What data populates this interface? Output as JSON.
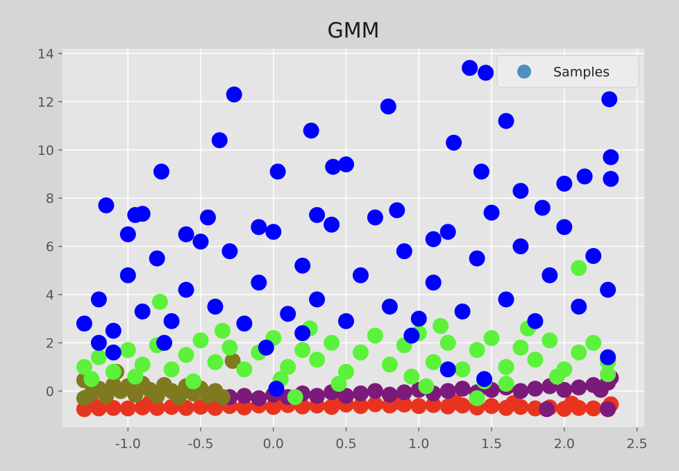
{
  "chart_data": {
    "type": "scatter",
    "title": "GMM",
    "xlabel": "",
    "ylabel": "",
    "xlim": [
      -1.45,
      2.55
    ],
    "ylim": [
      -1.5,
      14.2
    ],
    "xticks": [
      -1.0,
      -0.5,
      0.0,
      0.5,
      1.0,
      1.5,
      2.0,
      2.5
    ],
    "xtick_labels": [
      "-1.0",
      "-0.5",
      "0.0",
      "0.5",
      "1.0",
      "1.5",
      "2.0",
      "2.5"
    ],
    "yticks": [
      0,
      2,
      4,
      6,
      8,
      10,
      12,
      14
    ],
    "ytick_labels": [
      "0",
      "2",
      "4",
      "6",
      "8",
      "10",
      "12",
      "14"
    ],
    "grid": true,
    "legend": {
      "position": "top-right",
      "entries": [
        {
          "label": "Samples",
          "color": "#4c8fc0"
        }
      ]
    },
    "colors": {
      "blue_cluster": "#0000ff",
      "green_cluster": "#5cf23c",
      "olive_cluster": "#7f7a1f",
      "purple_cluster": "#7b1a7a",
      "red_cluster": "#e8341f"
    },
    "x_range_of_samples": [
      -1.33,
      2.35
    ],
    "series": [
      {
        "color": "#e8341f",
        "points": [
          [
            -1.3,
            -0.75
          ],
          [
            -1.2,
            -0.72
          ],
          [
            -1.1,
            -0.7
          ],
          [
            -1.0,
            -0.72
          ],
          [
            -0.9,
            -0.68
          ],
          [
            -0.8,
            -0.7
          ],
          [
            -0.7,
            -0.66
          ],
          [
            -0.6,
            -0.7
          ],
          [
            -0.5,
            -0.65
          ],
          [
            -0.4,
            -0.7
          ],
          [
            -0.3,
            -0.62
          ],
          [
            -0.2,
            -0.68
          ],
          [
            -0.1,
            -0.6
          ],
          [
            0.0,
            -0.66
          ],
          [
            0.1,
            -0.58
          ],
          [
            0.2,
            -0.64
          ],
          [
            0.3,
            -0.6
          ],
          [
            0.4,
            -0.66
          ],
          [
            0.5,
            -0.56
          ],
          [
            0.6,
            -0.62
          ],
          [
            0.7,
            -0.55
          ],
          [
            0.8,
            -0.6
          ],
          [
            0.9,
            -0.56
          ],
          [
            1.0,
            -0.62
          ],
          [
            1.1,
            -0.58
          ],
          [
            1.2,
            -0.64
          ],
          [
            1.3,
            -0.6
          ],
          [
            1.4,
            -0.68
          ],
          [
            1.5,
            -0.62
          ],
          [
            1.6,
            -0.7
          ],
          [
            1.7,
            -0.66
          ],
          [
            1.8,
            -0.72
          ],
          [
            1.9,
            -0.68
          ],
          [
            2.0,
            -0.74
          ],
          [
            2.1,
            -0.7
          ],
          [
            2.2,
            -0.72
          ],
          [
            2.3,
            -0.7
          ],
          [
            -1.25,
            -0.5
          ],
          [
            -0.85,
            -0.48
          ],
          [
            -0.45,
            -0.5
          ],
          [
            0.05,
            -0.45
          ],
          [
            0.45,
            -0.42
          ],
          [
            0.85,
            -0.44
          ],
          [
            1.25,
            -0.46
          ],
          [
            1.65,
            -0.5
          ],
          [
            2.05,
            -0.52
          ],
          [
            2.32,
            -0.55
          ]
        ]
      },
      {
        "color": "#7b1a7a",
        "points": [
          [
            -0.3,
            -0.25
          ],
          [
            -0.2,
            -0.2
          ],
          [
            -0.1,
            -0.3
          ],
          [
            0.0,
            -0.15
          ],
          [
            0.1,
            -0.25
          ],
          [
            0.2,
            -0.1
          ],
          [
            0.3,
            -0.2
          ],
          [
            0.4,
            -0.05
          ],
          [
            0.5,
            -0.2
          ],
          [
            0.6,
            -0.1
          ],
          [
            0.7,
            0.0
          ],
          [
            0.8,
            -0.15
          ],
          [
            0.9,
            -0.05
          ],
          [
            1.0,
            0.05
          ],
          [
            1.1,
            -0.1
          ],
          [
            1.2,
            0.0
          ],
          [
            1.3,
            0.1
          ],
          [
            1.4,
            -0.05
          ],
          [
            1.5,
            0.05
          ],
          [
            1.6,
            0.15
          ],
          [
            1.7,
            0.0
          ],
          [
            1.8,
            0.1
          ],
          [
            1.9,
            0.2
          ],
          [
            2.0,
            0.05
          ],
          [
            2.1,
            0.15
          ],
          [
            2.2,
            0.25
          ],
          [
            2.3,
            0.35
          ],
          [
            1.88,
            -0.75
          ],
          [
            2.3,
            -0.75
          ],
          [
            2.32,
            0.55
          ],
          [
            2.25,
            0.05
          ]
        ]
      },
      {
        "color": "#7f7a1f",
        "points": [
          [
            -1.3,
            -0.3
          ],
          [
            -1.25,
            -0.1
          ],
          [
            -1.2,
            0.1
          ],
          [
            -1.15,
            -0.2
          ],
          [
            -1.1,
            0.25
          ],
          [
            -1.05,
            0.0
          ],
          [
            -1.0,
            0.2
          ],
          [
            -0.95,
            -0.15
          ],
          [
            -0.9,
            0.3
          ],
          [
            -0.85,
            0.05
          ],
          [
            -0.8,
            -0.2
          ],
          [
            -0.75,
            0.25
          ],
          [
            -0.7,
            0.0
          ],
          [
            -0.65,
            -0.25
          ],
          [
            -0.6,
            0.2
          ],
          [
            -0.55,
            -0.1
          ],
          [
            -0.5,
            0.1
          ],
          [
            -0.45,
            -0.2
          ],
          [
            -0.4,
            0.0
          ],
          [
            -0.35,
            -0.25
          ],
          [
            -0.28,
            1.25
          ],
          [
            -1.08,
            0.8
          ],
          [
            -1.3,
            0.45
          ]
        ]
      },
      {
        "color": "#5cf23c",
        "points": [
          [
            -1.3,
            1.0
          ],
          [
            -1.2,
            1.4
          ],
          [
            -1.1,
            0.8
          ],
          [
            -1.0,
            1.7
          ],
          [
            -0.9,
            1.1
          ],
          [
            -0.8,
            1.9
          ],
          [
            -0.7,
            0.9
          ],
          [
            -0.6,
            1.5
          ],
          [
            -0.5,
            2.1
          ],
          [
            -0.4,
            1.2
          ],
          [
            -0.3,
            1.8
          ],
          [
            -0.2,
            0.9
          ],
          [
            -0.1,
            1.6
          ],
          [
            0.0,
            2.2
          ],
          [
            0.1,
            1.0
          ],
          [
            0.2,
            1.7
          ],
          [
            0.3,
            1.3
          ],
          [
            0.4,
            2.0
          ],
          [
            0.5,
            0.8
          ],
          [
            0.6,
            1.6
          ],
          [
            0.7,
            2.3
          ],
          [
            0.8,
            1.1
          ],
          [
            0.9,
            1.9
          ],
          [
            1.0,
            2.4
          ],
          [
            1.1,
            1.2
          ],
          [
            1.2,
            2.0
          ],
          [
            1.3,
            0.9
          ],
          [
            1.4,
            1.7
          ],
          [
            1.5,
            2.2
          ],
          [
            1.6,
            1.0
          ],
          [
            1.7,
            1.8
          ],
          [
            1.8,
            1.3
          ],
          [
            1.9,
            2.1
          ],
          [
            2.0,
            0.9
          ],
          [
            2.1,
            1.6
          ],
          [
            2.2,
            2.0
          ],
          [
            2.3,
            1.2
          ],
          [
            -1.25,
            0.5
          ],
          [
            -0.95,
            0.6
          ],
          [
            -0.55,
            0.4
          ],
          [
            0.05,
            0.5
          ],
          [
            0.45,
            0.3
          ],
          [
            0.95,
            0.6
          ],
          [
            1.45,
            0.4
          ],
          [
            1.95,
            0.6
          ],
          [
            2.3,
            0.7
          ],
          [
            -0.35,
            2.5
          ],
          [
            0.25,
            2.6
          ],
          [
            1.15,
            2.7
          ],
          [
            1.75,
            2.6
          ],
          [
            2.1,
            5.1
          ],
          [
            -0.78,
            3.7
          ],
          [
            1.4,
            -0.3
          ],
          [
            0.15,
            -0.25
          ],
          [
            1.05,
            0.2
          ],
          [
            1.6,
            0.3
          ]
        ]
      },
      {
        "color": "#0000ff",
        "points": [
          [
            -1.3,
            2.8
          ],
          [
            -1.2,
            3.8
          ],
          [
            -1.1,
            2.5
          ],
          [
            -1.0,
            4.8
          ],
          [
            -0.9,
            3.3
          ],
          [
            -0.8,
            5.5
          ],
          [
            -0.7,
            2.9
          ],
          [
            -0.6,
            4.2
          ],
          [
            -0.5,
            6.2
          ],
          [
            -0.4,
            3.5
          ],
          [
            -0.3,
            5.8
          ],
          [
            -0.2,
            2.8
          ],
          [
            -0.1,
            4.5
          ],
          [
            0.0,
            6.6
          ],
          [
            0.1,
            3.2
          ],
          [
            0.2,
            5.2
          ],
          [
            0.3,
            3.8
          ],
          [
            0.4,
            6.9
          ],
          [
            0.5,
            2.9
          ],
          [
            0.6,
            4.8
          ],
          [
            0.7,
            7.2
          ],
          [
            0.8,
            3.5
          ],
          [
            0.9,
            5.8
          ],
          [
            1.0,
            3.0
          ],
          [
            1.1,
            4.5
          ],
          [
            1.2,
            6.6
          ],
          [
            1.3,
            3.3
          ],
          [
            1.4,
            5.5
          ],
          [
            1.5,
            7.4
          ],
          [
            1.6,
            3.8
          ],
          [
            1.7,
            6.0
          ],
          [
            1.8,
            2.9
          ],
          [
            1.9,
            4.8
          ],
          [
            2.0,
            6.8
          ],
          [
            2.1,
            3.5
          ],
          [
            2.2,
            5.6
          ],
          [
            2.3,
            4.2
          ],
          [
            -1.15,
            7.7
          ],
          [
            -0.95,
            7.3
          ],
          [
            -0.9,
            7.35
          ],
          [
            -0.77,
            9.1
          ],
          [
            -0.37,
            10.4
          ],
          [
            -0.27,
            12.3
          ],
          [
            0.03,
            9.1
          ],
          [
            0.26,
            10.8
          ],
          [
            0.41,
            9.3
          ],
          [
            0.5,
            9.4
          ],
          [
            0.79,
            11.8
          ],
          [
            1.24,
            10.3
          ],
          [
            1.35,
            13.4
          ],
          [
            1.46,
            13.2
          ],
          [
            1.43,
            9.1
          ],
          [
            1.6,
            11.2
          ],
          [
            2.0,
            8.6
          ],
          [
            2.14,
            8.9
          ],
          [
            2.31,
            12.1
          ],
          [
            2.32,
            9.7
          ],
          [
            2.32,
            8.8
          ],
          [
            -1.0,
            6.5
          ],
          [
            -0.6,
            6.5
          ],
          [
            -0.1,
            6.8
          ],
          [
            0.3,
            7.3
          ],
          [
            1.7,
            8.3
          ],
          [
            1.85,
            7.6
          ],
          [
            1.1,
            6.3
          ],
          [
            0.85,
            7.5
          ],
          [
            -0.45,
            7.2
          ],
          [
            -1.2,
            2.0
          ],
          [
            -1.1,
            1.6
          ],
          [
            -0.75,
            2.0
          ],
          [
            -0.05,
            1.8
          ],
          [
            0.2,
            2.4
          ],
          [
            0.95,
            2.3
          ],
          [
            2.3,
            1.4
          ],
          [
            1.2,
            0.9
          ],
          [
            1.45,
            0.5
          ],
          [
            0.02,
            0.1
          ]
        ]
      }
    ]
  }
}
